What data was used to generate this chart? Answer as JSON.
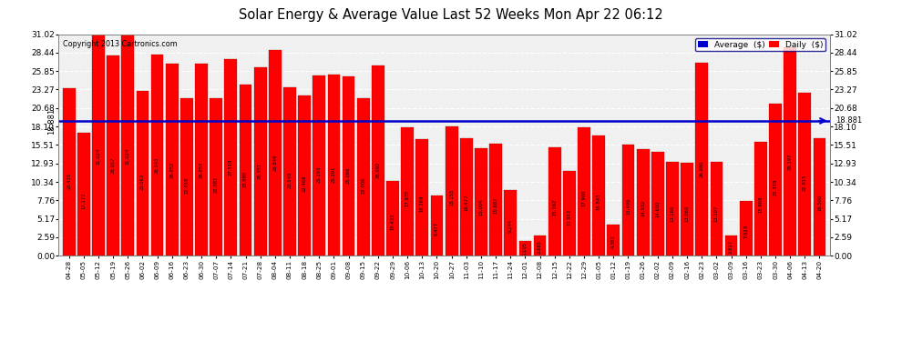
{
  "title": "Solar Energy & Average Value Last 52 Weeks Mon Apr 22 06:12",
  "copyright": "Copyright 2013 Cartronics.com",
  "average_value": 18.881,
  "average_label": "18.881",
  "bar_color": "#FF0000",
  "average_line_color": "#0000CD",
  "background_color": "#FFFFFF",
  "plot_bg_color": "#F0F0F0",
  "ylim": [
    0,
    31.02
  ],
  "yticks": [
    0.0,
    2.59,
    5.17,
    7.76,
    10.34,
    12.93,
    15.51,
    18.1,
    20.68,
    23.27,
    25.85,
    28.44,
    31.02
  ],
  "categories": [
    "04-28",
    "05-05",
    "05-12",
    "05-19",
    "05-26",
    "06-02",
    "06-09",
    "06-16",
    "06-23",
    "06-30",
    "07-07",
    "07-14",
    "07-21",
    "07-28",
    "08-04",
    "08-11",
    "08-18",
    "08-25",
    "09-01",
    "09-08",
    "09-15",
    "09-22",
    "09-29",
    "10-06",
    "10-13",
    "10-20",
    "10-27",
    "11-03",
    "11-10",
    "11-17",
    "11-24",
    "12-01",
    "12-08",
    "12-15",
    "12-22",
    "12-29",
    "01-05",
    "01-12",
    "01-19",
    "01-26",
    "02-02",
    "02-09",
    "02-16",
    "02-23",
    "03-02",
    "03-09",
    "03-16",
    "03-23",
    "03-30",
    "04-06",
    "04-13",
    "04-20"
  ],
  "values": [
    23.435,
    17.177,
    31.024,
    28.057,
    31.024,
    23.062,
    28.143,
    26.852,
    22.018,
    26.857,
    22.081,
    27.518,
    23.985,
    26.351,
    28.849,
    23.549,
    22.468,
    25.193,
    25.391,
    25.066,
    22.006,
    26.692,
    10.433,
    17.935,
    16.269,
    8.477,
    18.155,
    16.477,
    15.004,
    15.687,
    9.244,
    2.105,
    2.885,
    15.162,
    11.912,
    17.96,
    16.843,
    4.361,
    15.499,
    14.932,
    14.6,
    13.18,
    13.06,
    26.98,
    13.197,
    2.817,
    7.629,
    15.968,
    21.319,
    29.197,
    22.815,
    16.5
  ],
  "legend_avg_color": "#0000CD",
  "legend_daily_color": "#FF0000",
  "legend_avg_text": "Average  ($)",
  "legend_daily_text": "Daily  ($)"
}
